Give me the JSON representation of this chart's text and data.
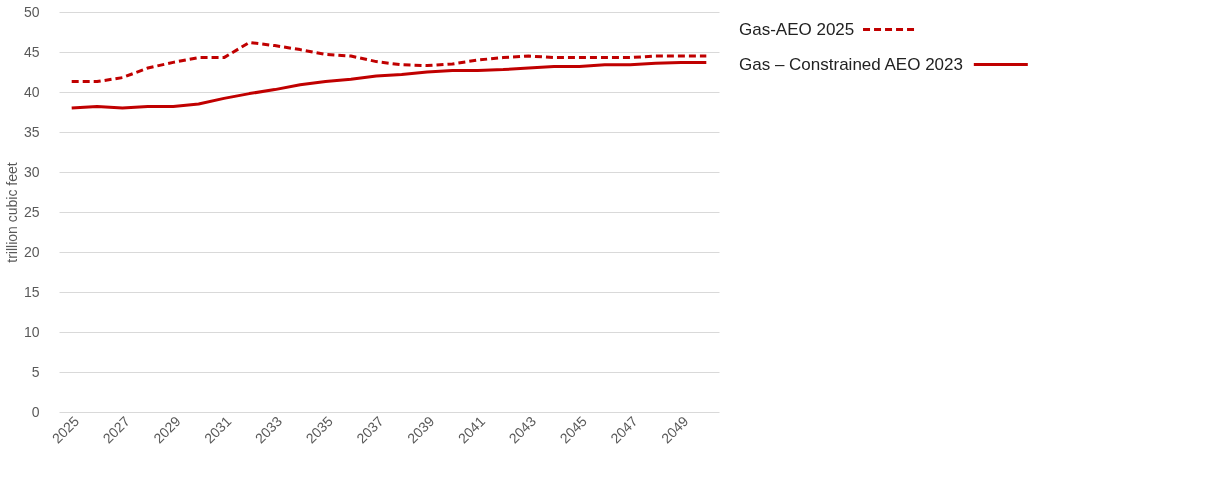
{
  "chart_data": {
    "type": "line",
    "ylabel": "trillion cubic feet",
    "categories": [
      "2025",
      null,
      "2027",
      null,
      "2029",
      null,
      "2031",
      null,
      "2033",
      null,
      "2035",
      null,
      "2037",
      null,
      "2039",
      null,
      "2041",
      null,
      "2043",
      null,
      "2045",
      null,
      "2047",
      null,
      "2049",
      null
    ],
    "series": [
      {
        "name": "Gas-AEO 2025",
        "color": "#c00000",
        "line_style": "dashed",
        "values": [
          41.3,
          41.3,
          41.8,
          43.0,
          43.7,
          44.3,
          44.3,
          46.2,
          45.8,
          45.3,
          44.7,
          44.5,
          43.8,
          43.4,
          43.3,
          43.5,
          44.0,
          44.3,
          44.5,
          44.3,
          44.3,
          44.3,
          44.3,
          44.5,
          44.5,
          44.5
        ]
      },
      {
        "name": "Gas – Constrained AEO 2023",
        "color": "#c00000",
        "line_style": "solid",
        "values": [
          38.0,
          38.2,
          38.0,
          38.2,
          38.2,
          38.5,
          39.2,
          39.8,
          40.3,
          40.9,
          41.3,
          41.6,
          42.0,
          42.2,
          42.5,
          42.7,
          42.7,
          42.8,
          43.0,
          43.2,
          43.2,
          43.4,
          43.4,
          43.6,
          43.7,
          43.7
        ]
      }
    ],
    "ylim": [
      0,
      50
    ],
    "yticks": [
      0,
      5,
      10,
      15,
      20,
      25,
      30,
      35,
      40,
      45,
      50
    ],
    "grid": "y",
    "legend": "top right"
  }
}
